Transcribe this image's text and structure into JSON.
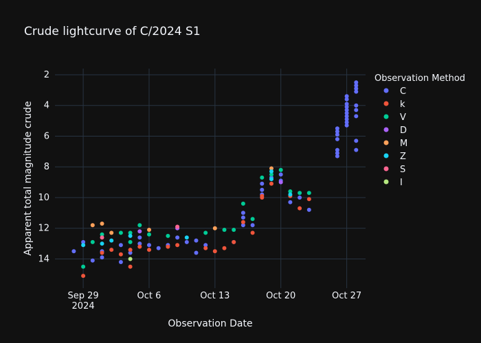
{
  "chart_data": {
    "type": "scatter",
    "title": "Crude lightcurve of C/2024 S1",
    "xlabel": "Observation Date",
    "ylabel": "Apparent total magnitude crude",
    "y_reversed": true,
    "ylim": [
      15.9,
      1.6
    ],
    "xlim": [
      "2024-09-26",
      "2024-10-29"
    ],
    "x_ticks": [
      {
        "date": "2024-09-29",
        "label": "Sep 29",
        "sub": "2024"
      },
      {
        "date": "2024-10-06",
        "label": "Oct 6"
      },
      {
        "date": "2024-10-13",
        "label": "Oct 13"
      },
      {
        "date": "2024-10-20",
        "label": "Oct 20"
      },
      {
        "date": "2024-10-27",
        "label": "Oct 27"
      }
    ],
    "y_ticks": [
      2,
      4,
      6,
      8,
      10,
      12,
      14
    ],
    "grid": true,
    "legend_title": "Observation Method",
    "legend_position": "right",
    "series": [
      {
        "name": "C",
        "color": "#636efa",
        "points": [
          [
            "2024-09-28",
            13.5
          ],
          [
            "2024-09-29",
            12.9
          ],
          [
            "2024-09-30",
            14.1
          ],
          [
            "2024-10-01",
            13.5
          ],
          [
            "2024-10-01",
            13.9
          ],
          [
            "2024-10-03",
            13.1
          ],
          [
            "2024-10-03",
            14.2
          ],
          [
            "2024-10-04",
            13.6
          ],
          [
            "2024-10-05",
            12.6
          ],
          [
            "2024-10-05",
            13.0
          ],
          [
            "2024-10-06",
            13.1
          ],
          [
            "2024-10-07",
            13.3
          ],
          [
            "2024-10-08",
            13.1
          ],
          [
            "2024-10-09",
            12.6
          ],
          [
            "2024-10-10",
            12.9
          ],
          [
            "2024-10-11",
            12.8
          ],
          [
            "2024-10-11",
            13.6
          ],
          [
            "2024-10-12",
            13.1
          ],
          [
            "2024-10-15",
            12.9
          ],
          [
            "2024-10-16",
            11.0
          ],
          [
            "2024-10-16",
            11.3
          ],
          [
            "2024-10-16",
            11.8
          ],
          [
            "2024-10-17",
            11.8
          ],
          [
            "2024-10-18",
            9.1
          ],
          [
            "2024-10-18",
            9.5
          ],
          [
            "2024-10-18",
            9.8
          ],
          [
            "2024-10-19",
            8.7
          ],
          [
            "2024-10-20",
            8.5
          ],
          [
            "2024-10-20",
            8.9
          ],
          [
            "2024-10-21",
            10.3
          ],
          [
            "2024-10-22",
            10.0
          ],
          [
            "2024-10-23",
            10.8
          ],
          [
            "2024-10-26",
            5.5
          ],
          [
            "2024-10-26",
            5.7
          ],
          [
            "2024-10-26",
            5.9
          ],
          [
            "2024-10-26",
            6.2
          ],
          [
            "2024-10-26",
            6.9
          ],
          [
            "2024-10-26",
            7.1
          ],
          [
            "2024-10-26",
            7.3
          ],
          [
            "2024-10-27",
            3.4
          ],
          [
            "2024-10-27",
            3.6
          ],
          [
            "2024-10-27",
            3.9
          ],
          [
            "2024-10-27",
            4.1
          ],
          [
            "2024-10-27",
            4.3
          ],
          [
            "2024-10-27",
            4.5
          ],
          [
            "2024-10-27",
            4.7
          ],
          [
            "2024-10-27",
            4.9
          ],
          [
            "2024-10-27",
            5.1
          ],
          [
            "2024-10-27",
            5.3
          ],
          [
            "2024-10-28",
            2.5
          ],
          [
            "2024-10-28",
            2.7
          ],
          [
            "2024-10-28",
            2.9
          ],
          [
            "2024-10-28",
            3.1
          ],
          [
            "2024-10-28",
            4.0
          ],
          [
            "2024-10-28",
            4.3
          ],
          [
            "2024-10-28",
            4.7
          ],
          [
            "2024-10-28",
            6.3
          ],
          [
            "2024-10-28",
            6.9
          ]
        ]
      },
      {
        "name": "k",
        "color": "#ef553b",
        "points": [
          [
            "2024-09-29",
            15.1
          ],
          [
            "2024-10-01",
            13.6
          ],
          [
            "2024-10-02",
            13.4
          ],
          [
            "2024-10-03",
            13.7
          ],
          [
            "2024-10-04",
            13.4
          ],
          [
            "2024-10-04",
            14.5
          ],
          [
            "2024-10-05",
            13.2
          ],
          [
            "2024-10-06",
            13.4
          ],
          [
            "2024-10-08",
            13.2
          ],
          [
            "2024-10-09",
            13.1
          ],
          [
            "2024-10-12",
            13.3
          ],
          [
            "2024-10-13",
            13.5
          ],
          [
            "2024-10-14",
            13.3
          ],
          [
            "2024-10-15",
            12.9
          ],
          [
            "2024-10-16",
            11.6
          ],
          [
            "2024-10-17",
            12.3
          ],
          [
            "2024-10-18",
            9.9
          ],
          [
            "2024-10-18",
            10.0
          ],
          [
            "2024-10-19",
            9.1
          ],
          [
            "2024-10-21",
            9.9
          ],
          [
            "2024-10-22",
            10.7
          ],
          [
            "2024-10-23",
            10.1
          ]
        ]
      },
      {
        "name": "V",
        "color": "#00cc96",
        "points": [
          [
            "2024-09-29",
            14.5
          ],
          [
            "2024-09-30",
            12.9
          ],
          [
            "2024-10-01",
            12.4
          ],
          [
            "2024-10-03",
            12.3
          ],
          [
            "2024-10-04",
            12.3
          ],
          [
            "2024-10-04",
            12.9
          ],
          [
            "2024-10-05",
            11.8
          ],
          [
            "2024-10-06",
            12.4
          ],
          [
            "2024-10-08",
            12.5
          ],
          [
            "2024-10-12",
            12.3
          ],
          [
            "2024-10-14",
            12.1
          ],
          [
            "2024-10-15",
            12.1
          ],
          [
            "2024-10-16",
            10.4
          ],
          [
            "2024-10-17",
            11.4
          ],
          [
            "2024-10-18",
            8.7
          ],
          [
            "2024-10-19",
            8.5
          ],
          [
            "2024-10-20",
            8.2
          ],
          [
            "2024-10-21",
            9.6
          ],
          [
            "2024-10-22",
            9.7
          ],
          [
            "2024-10-23",
            9.7
          ]
        ]
      },
      {
        "name": "D",
        "color": "#ab63fa",
        "points": [
          [
            "2024-10-05",
            12.2
          ],
          [
            "2024-10-09",
            12.0
          ],
          [
            "2024-10-20",
            9.0
          ]
        ]
      },
      {
        "name": "M",
        "color": "#ffa15a",
        "points": [
          [
            "2024-09-30",
            11.8
          ],
          [
            "2024-10-01",
            11.7
          ],
          [
            "2024-10-02",
            12.3
          ],
          [
            "2024-10-06",
            12.1
          ],
          [
            "2024-10-13",
            12.0
          ],
          [
            "2024-10-19",
            8.1
          ]
        ]
      },
      {
        "name": "Z",
        "color": "#19d3f3",
        "points": [
          [
            "2024-09-29",
            13.1
          ],
          [
            "2024-10-01",
            13.0
          ],
          [
            "2024-10-02",
            12.8
          ],
          [
            "2024-10-04",
            12.5
          ],
          [
            "2024-10-10",
            12.6
          ],
          [
            "2024-10-19",
            8.3
          ],
          [
            "2024-10-19",
            8.8
          ],
          [
            "2024-10-21",
            9.8
          ]
        ]
      },
      {
        "name": "S",
        "color": "#ff6692",
        "points": [
          [
            "2024-10-01",
            12.6
          ],
          [
            "2024-10-09",
            11.9
          ]
        ]
      },
      {
        "name": "I",
        "color": "#b6e880",
        "points": [
          [
            "2024-10-04",
            14.0
          ]
        ]
      }
    ]
  }
}
